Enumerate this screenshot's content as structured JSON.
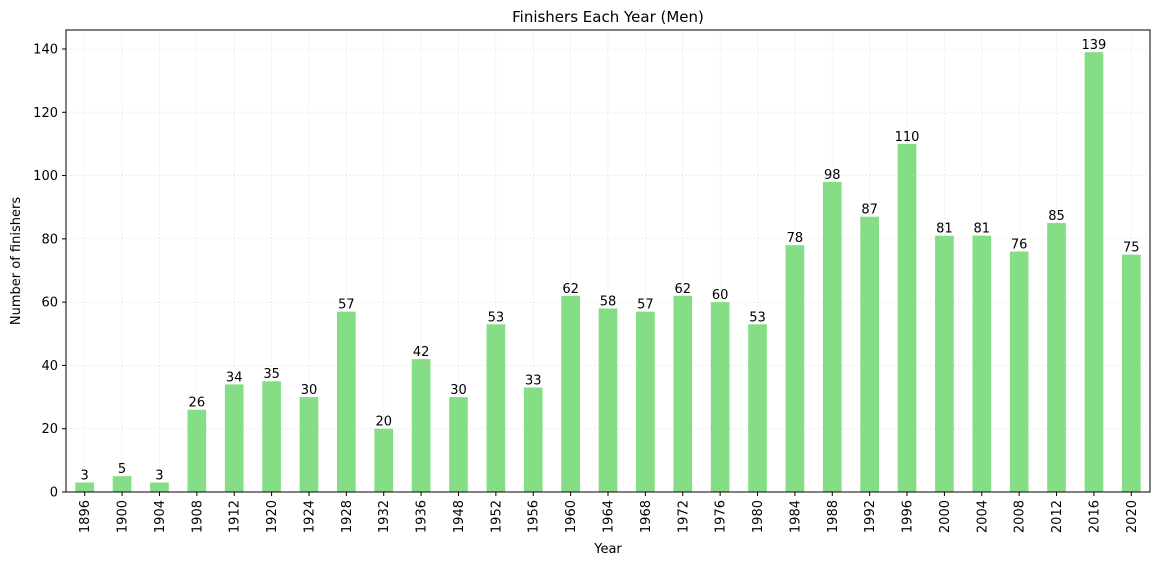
{
  "chart_data": {
    "type": "bar",
    "title": "Finishers Each Year (Men)",
    "xlabel": "Year",
    "ylabel": "Number of finishers",
    "categories": [
      "1896",
      "1900",
      "1904",
      "1908",
      "1912",
      "1920",
      "1924",
      "1928",
      "1932",
      "1936",
      "1948",
      "1952",
      "1956",
      "1960",
      "1964",
      "1968",
      "1972",
      "1976",
      "1980",
      "1984",
      "1988",
      "1992",
      "1996",
      "2000",
      "2004",
      "2008",
      "2012",
      "2016",
      "2020"
    ],
    "values": [
      3,
      5,
      3,
      26,
      34,
      35,
      30,
      57,
      20,
      42,
      30,
      53,
      33,
      62,
      58,
      57,
      62,
      60,
      53,
      78,
      98,
      87,
      110,
      81,
      81,
      76,
      85,
      139,
      75
    ],
    "ylim": [
      0,
      146
    ],
    "yticks": [
      0,
      20,
      40,
      60,
      80,
      100,
      120,
      140
    ],
    "grid": true,
    "bar_color": "#85de85",
    "grid_color": "#d3d3d3"
  }
}
